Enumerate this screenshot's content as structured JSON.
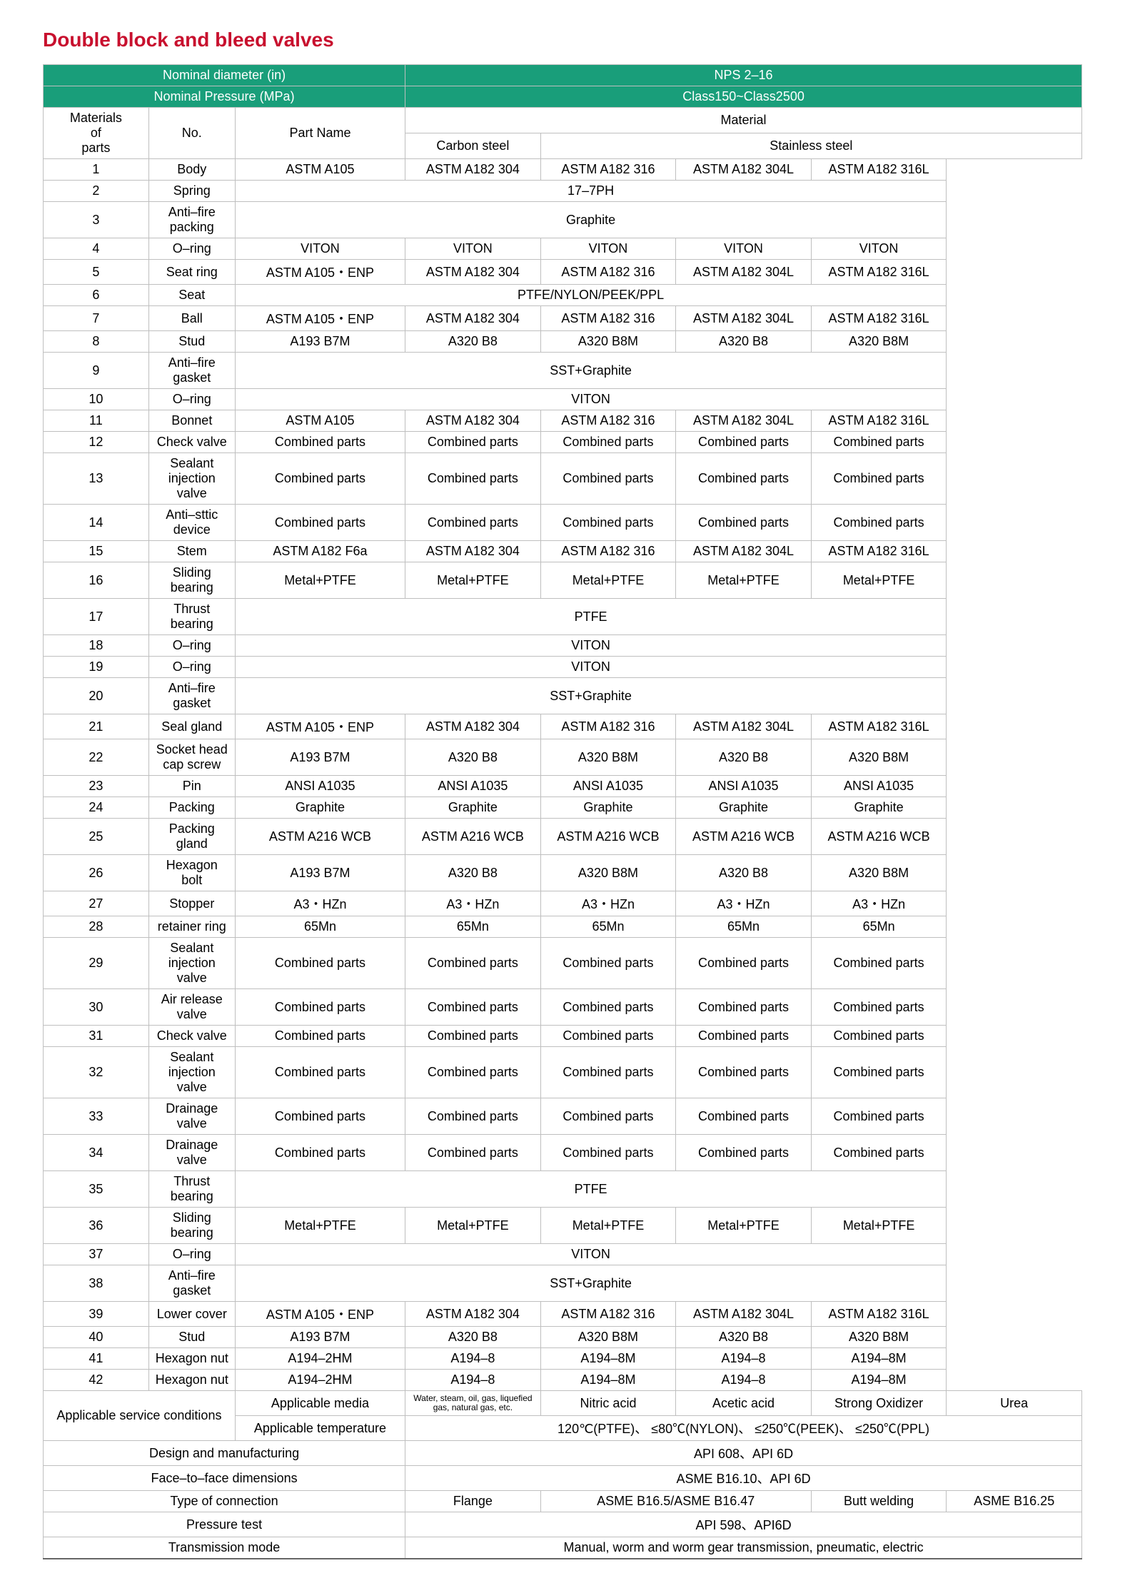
{
  "title_text": "Double block and bleed valves",
  "title_color": "#c8102e",
  "header_bg": "#199e7a",
  "header_fg": "#ffffff",
  "h_nom_diam_label": "Nominal diameter (in)",
  "h_nom_diam_value": "NPS 2–16",
  "h_nom_press_label": "Nominal Pressure (MPa)",
  "h_nom_press_value": "Class150~Class2500",
  "col_no": "No.",
  "col_partname": "Part Name",
  "col_material": "Material",
  "col_cs": "Carbon steel",
  "col_ss": "Stainless steel",
  "sidelabel_materials": "Materials\nof\nparts",
  "parts": [
    {
      "no": "1",
      "name": "Body",
      "cells": [
        "ASTM A105",
        "ASTM A182 304",
        "ASTM A182 316",
        "ASTM A182 304L",
        "ASTM A182 316L"
      ]
    },
    {
      "no": "2",
      "name": "Spring",
      "span": "17–7PH"
    },
    {
      "no": "3",
      "name": "Anti–fire packing",
      "span": "Graphite"
    },
    {
      "no": "4",
      "name": "O–ring",
      "cells": [
        "VITON",
        "VITON",
        "VITON",
        "VITON",
        "VITON"
      ]
    },
    {
      "no": "5",
      "name": "Seat ring",
      "cells": [
        "ASTM A105・ENP",
        "ASTM A182 304",
        "ASTM A182 316",
        "ASTM A182 304L",
        "ASTM A182 316L"
      ]
    },
    {
      "no": "6",
      "name": "Seat",
      "span": "PTFE/NYLON/PEEK/PPL"
    },
    {
      "no": "7",
      "name": "Ball",
      "cells": [
        "ASTM A105・ENP",
        "ASTM A182 304",
        "ASTM A182 316",
        "ASTM A182 304L",
        "ASTM A182 316L"
      ]
    },
    {
      "no": "8",
      "name": "Stud",
      "cells": [
        "A193 B7M",
        "A320 B8",
        "A320 B8M",
        "A320 B8",
        "A320 B8M"
      ]
    },
    {
      "no": "9",
      "name": "Anti–fire gasket",
      "span": "SST+Graphite"
    },
    {
      "no": "10",
      "name": "O–ring",
      "span": "VITON"
    },
    {
      "no": "11",
      "name": "Bonnet",
      "cells": [
        "ASTM A105",
        "ASTM A182 304",
        "ASTM A182 316",
        "ASTM A182 304L",
        "ASTM A182 316L"
      ]
    },
    {
      "no": "12",
      "name": "Check valve",
      "cells": [
        "Combined parts",
        "Combined parts",
        "Combined parts",
        "Combined parts",
        "Combined parts"
      ]
    },
    {
      "no": "13",
      "name": "Sealant injection valve",
      "cells": [
        "Combined parts",
        "Combined parts",
        "Combined parts",
        "Combined parts",
        "Combined parts"
      ]
    },
    {
      "no": "14",
      "name": "Anti–sttic device",
      "cells": [
        "Combined parts",
        "Combined parts",
        "Combined parts",
        "Combined parts",
        "Combined parts"
      ]
    },
    {
      "no": "15",
      "name": "Stem",
      "cells": [
        "ASTM A182 F6a",
        "ASTM A182 304",
        "ASTM A182 316",
        "ASTM A182 304L",
        "ASTM A182 316L"
      ]
    },
    {
      "no": "16",
      "name": "Sliding bearing",
      "cells": [
        "Metal+PTFE",
        "Metal+PTFE",
        "Metal+PTFE",
        "Metal+PTFE",
        "Metal+PTFE"
      ]
    },
    {
      "no": "17",
      "name": "Thrust bearing",
      "span": "PTFE"
    },
    {
      "no": "18",
      "name": "O–ring",
      "span": "VITON"
    },
    {
      "no": "19",
      "name": "O–ring",
      "span": "VITON"
    },
    {
      "no": "20",
      "name": "Anti–fire gasket",
      "span": "SST+Graphite"
    },
    {
      "no": "21",
      "name": "Seal gland",
      "cells": [
        "ASTM A105・ENP",
        "ASTM A182 304",
        "ASTM A182 316",
        "ASTM A182 304L",
        "ASTM A182 316L"
      ]
    },
    {
      "no": "22",
      "name": "Socket head cap screw",
      "cells": [
        "A193 B7M",
        "A320 B8",
        "A320 B8M",
        "A320 B8",
        "A320 B8M"
      ]
    },
    {
      "no": "23",
      "name": "Pin",
      "cells": [
        "ANSI A1035",
        "ANSI A1035",
        "ANSI A1035",
        "ANSI A1035",
        "ANSI A1035"
      ]
    },
    {
      "no": "24",
      "name": "Packing",
      "cells": [
        "Graphite",
        "Graphite",
        "Graphite",
        "Graphite",
        "Graphite"
      ]
    },
    {
      "no": "25",
      "name": "Packing gland",
      "cells": [
        "ASTM A216 WCB",
        "ASTM A216 WCB",
        "ASTM A216 WCB",
        "ASTM A216 WCB",
        "ASTM A216 WCB"
      ]
    },
    {
      "no": "26",
      "name": "Hexagon bolt",
      "cells": [
        "A193 B7M",
        "A320 B8",
        "A320 B8M",
        "A320 B8",
        "A320 B8M"
      ]
    },
    {
      "no": "27",
      "name": "Stopper",
      "cells": [
        "A3・HZn",
        "A3・HZn",
        "A3・HZn",
        "A3・HZn",
        "A3・HZn"
      ]
    },
    {
      "no": "28",
      "name": "retainer ring",
      "cells": [
        "65Mn",
        "65Mn",
        "65Mn",
        "65Mn",
        "65Mn"
      ]
    },
    {
      "no": "29",
      "name": "Sealant injection valve",
      "cells": [
        "Combined parts",
        "Combined parts",
        "Combined parts",
        "Combined parts",
        "Combined parts"
      ]
    },
    {
      "no": "30",
      "name": "Air release valve",
      "cells": [
        "Combined parts",
        "Combined parts",
        "Combined parts",
        "Combined parts",
        "Combined parts"
      ]
    },
    {
      "no": "31",
      "name": "Check valve",
      "cells": [
        "Combined parts",
        "Combined parts",
        "Combined parts",
        "Combined parts",
        "Combined parts"
      ]
    },
    {
      "no": "32",
      "name": "Sealant injection valve",
      "cells": [
        "Combined parts",
        "Combined parts",
        "Combined parts",
        "Combined parts",
        "Combined parts"
      ]
    },
    {
      "no": "33",
      "name": "Drainage valve",
      "cells": [
        "Combined parts",
        "Combined parts",
        "Combined parts",
        "Combined parts",
        "Combined parts"
      ]
    },
    {
      "no": "34",
      "name": "Drainage valve",
      "cells": [
        "Combined parts",
        "Combined parts",
        "Combined parts",
        "Combined parts",
        "Combined parts"
      ]
    },
    {
      "no": "35",
      "name": "Thrust bearing",
      "span": "PTFE"
    },
    {
      "no": "36",
      "name": "Sliding bearing",
      "cells": [
        "Metal+PTFE",
        "Metal+PTFE",
        "Metal+PTFE",
        "Metal+PTFE",
        "Metal+PTFE"
      ]
    },
    {
      "no": "37",
      "name": "O–ring",
      "span": "VITON"
    },
    {
      "no": "38",
      "name": "Anti–fire gasket",
      "span": "SST+Graphite"
    },
    {
      "no": "39",
      "name": "Lower cover",
      "cells": [
        "ASTM A105・ENP",
        "ASTM A182 304",
        "ASTM A182 316",
        "ASTM A182 304L",
        "ASTM A182 316L"
      ]
    },
    {
      "no": "40",
      "name": "Stud",
      "cells": [
        "A193 B7M",
        "A320 B8",
        "A320 B8M",
        "A320 B8",
        "A320 B8M"
      ]
    },
    {
      "no": "41",
      "name": "Hexagon nut",
      "cells": [
        "A194–2HM",
        "A194–8",
        "A194–8M",
        "A194–8",
        "A194–8M"
      ]
    },
    {
      "no": "42",
      "name": "Hexagon nut",
      "cells": [
        "A194–2HM",
        "A194–8",
        "A194–8M",
        "A194–8",
        "A194–8M"
      ]
    }
  ],
  "svc_label": "Applicable service conditions",
  "svc_media_label": "Applicable media",
  "svc_media_cells": [
    "Water, steam, oil, gas, liquefied gas, natural gas, etc.",
    "Nitric acid",
    "Acetic acid",
    "Strong Oxidizer",
    "Urea"
  ],
  "svc_temp_label": "Applicable temperature",
  "svc_temp_value": "120℃(PTFE)、 ≤80℃(NYLON)、 ≤250℃(PEEK)、 ≤250℃(PPL)",
  "row_design_label": "Design and manufacturing",
  "row_design_value": "API 608、API 6D",
  "row_ftf_label": "Face–to–face dimensions",
  "row_ftf_value": "ASME B16.10、API 6D",
  "row_conn_label": "Type of connection",
  "row_conn_cells": [
    "Flange",
    "ASME B16.5/ASME B16.47",
    "Butt welding",
    "ASME B16.25"
  ],
  "row_press_label": "Pressure test",
  "row_press_value": "API 598、API6D",
  "row_trans_label": "Transmission mode",
  "row_trans_value": "Manual, worm and worm gear transmission, pneumatic, electric"
}
